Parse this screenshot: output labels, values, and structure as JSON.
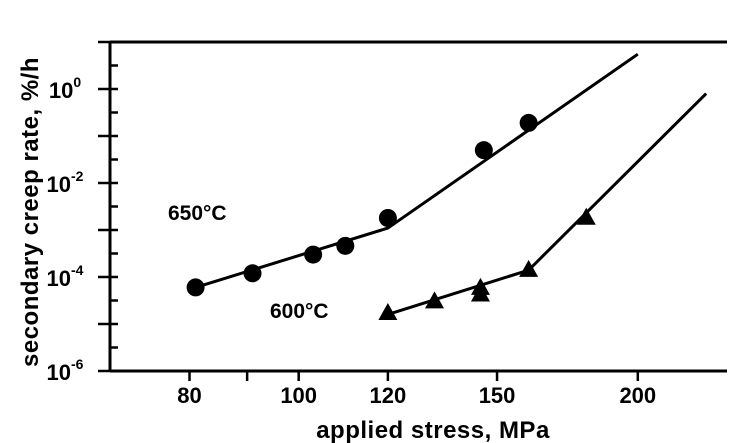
{
  "chart_data": {
    "type": "scatter",
    "xlabel": "applied stress, MPa",
    "ylabel": "secondary creep rate, %/h",
    "x_scale": "log",
    "y_scale": "log",
    "xlim": [
      68,
      240
    ],
    "ylim": [
      1e-06,
      10
    ],
    "x_ticks": [
      {
        "value": 80,
        "label": "80"
      },
      {
        "value": 90,
        "label": ""
      },
      {
        "value": 100,
        "label": "100"
      },
      {
        "value": 120,
        "label": "120"
      },
      {
        "value": 150,
        "label": "150"
      },
      {
        "value": 200,
        "label": "200"
      }
    ],
    "y_ticks": [
      {
        "value": 1e-06,
        "base": "10",
        "exp": "-6"
      },
      {
        "value": 0.0001,
        "base": "10",
        "exp": "-4"
      },
      {
        "value": 0.01,
        "base": "10",
        "exp": "-2"
      },
      {
        "value": 1,
        "base": "10",
        "exp": "0"
      }
    ],
    "series": [
      {
        "name": "650°C",
        "marker": "circle",
        "x": [
          81,
          91,
          103,
          110,
          120,
          146,
          160
        ],
        "y": [
          6e-05,
          0.00012,
          0.0003,
          0.00046,
          0.0018,
          0.05,
          0.19
        ],
        "fit": [
          [
            81,
            6e-05
          ],
          [
            120,
            0.0011
          ],
          [
            200,
            5.5
          ]
        ]
      },
      {
        "name": "600°C",
        "marker": "triangle",
        "x": [
          120,
          132,
          145,
          145,
          160,
          180
        ],
        "y": [
          1.7e-05,
          3e-05,
          5.8e-05,
          4.2e-05,
          0.00014,
          0.0018
        ],
        "fit": [
          [
            120,
            1.6e-05
          ],
          [
            160,
            0.00014
          ],
          [
            230,
            0.8
          ]
        ]
      }
    ],
    "annotations": [
      {
        "text": "650°C",
        "series": "650°C"
      },
      {
        "text": "600°C",
        "series": "600°C"
      }
    ]
  }
}
